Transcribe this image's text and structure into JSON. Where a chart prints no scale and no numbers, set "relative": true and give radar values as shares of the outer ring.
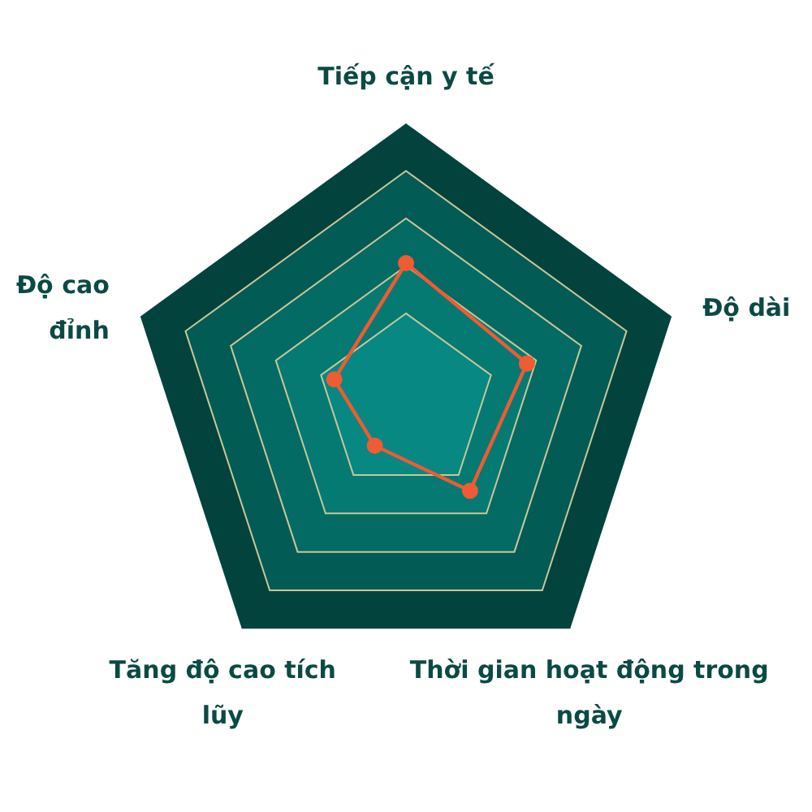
{
  "chart_data": {
    "type": "radar",
    "relative": true,
    "grid": true,
    "marker": "circle",
    "line_style": "solid",
    "categories": [
      "Tiếp cận y tế",
      "Độ dài",
      "Thời gian hoạt động trong ngày",
      "Tăng độ cao tích lũy",
      "Độ cao đỉnh"
    ],
    "series": [
      {
        "color": "#ef5b32",
        "values": [
          0.5,
          0.455,
          0.39,
          0.19,
          0.27
        ]
      }
    ]
  }
}
